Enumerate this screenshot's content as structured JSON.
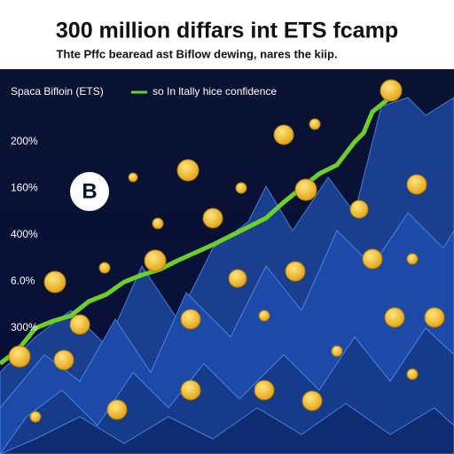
{
  "header": {
    "title": "300 million diffars int ETS fcamp",
    "subtitle": "Thte Pffc bearead ast Biflow dewing, nares the kiip."
  },
  "legend": {
    "series_label": "Spaca Bifloin (ETS)",
    "line_label": "so In ltally hice confidence"
  },
  "axis_labels": [
    "200%",
    "160%",
    "400%",
    "6.0%",
    "300%"
  ]
}
